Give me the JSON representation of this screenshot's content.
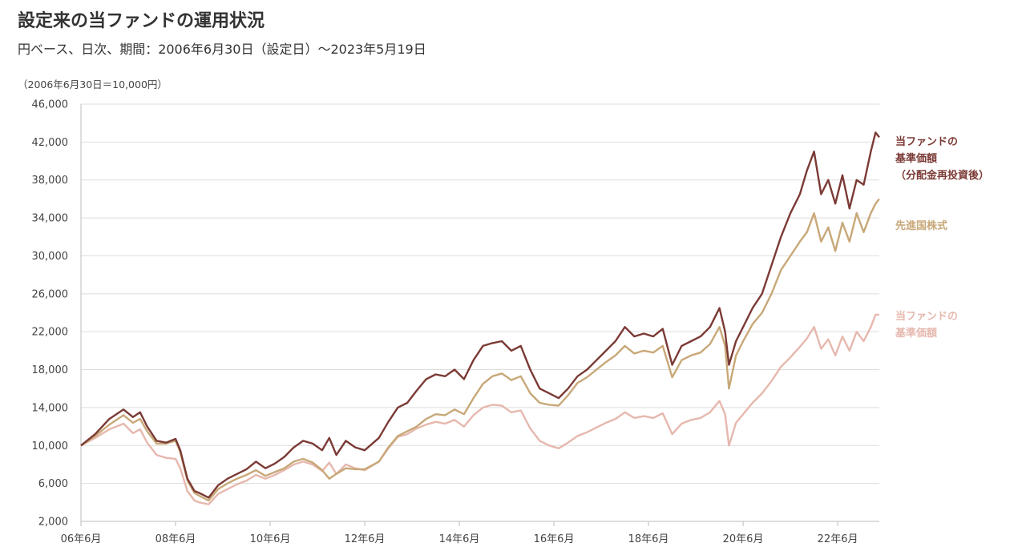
{
  "title": "設定来の当ファンドの運用状況",
  "subtitle": "円ベース、日次、期間：2006年6月30日（設定日）～2023年5月19日",
  "chart_data": {
    "type": "line",
    "unit_note": "（2006年6月30日＝10,000円）",
    "ylim": [
      2000,
      46000
    ],
    "yticks": [
      2000,
      6000,
      10000,
      14000,
      18000,
      22000,
      26000,
      30000,
      34000,
      38000,
      42000,
      46000
    ],
    "ytick_labels": [
      "2,000",
      "6,000",
      "10,000",
      "14,000",
      "18,000",
      "22,000",
      "26,000",
      "30,000",
      "34,000",
      "38,000",
      "42,000",
      "46,000"
    ],
    "xlim": [
      2006.5,
      2023.38
    ],
    "xticks": [
      2006.5,
      2008.5,
      2010.5,
      2012.5,
      2014.5,
      2016.5,
      2018.5,
      2020.5,
      2022.5
    ],
    "xtick_labels": [
      "06年6月",
      "08年6月",
      "10年6月",
      "12年6月",
      "14年6月",
      "16年6月",
      "18年6月",
      "20年6月",
      "22年6月"
    ],
    "grid": true,
    "legend_placement": "right",
    "series": [
      {
        "name": "当ファンドの基準価額（分配金再投資後）",
        "label_lines": [
          "当ファンドの",
          "基準価額",
          "（分配金再投資後）"
        ],
        "color": "#7b3a35",
        "points": [
          [
            2006.5,
            10000
          ],
          [
            2006.8,
            11200
          ],
          [
            2007.1,
            12800
          ],
          [
            2007.4,
            13800
          ],
          [
            2007.6,
            13000
          ],
          [
            2007.75,
            13500
          ],
          [
            2007.9,
            12000
          ],
          [
            2008.1,
            10500
          ],
          [
            2008.3,
            10300
          ],
          [
            2008.5,
            10700
          ],
          [
            2008.6,
            9500
          ],
          [
            2008.75,
            6500
          ],
          [
            2008.9,
            5200
          ],
          [
            2009.0,
            5000
          ],
          [
            2009.2,
            4500
          ],
          [
            2009.4,
            5800
          ],
          [
            2009.6,
            6500
          ],
          [
            2009.8,
            7000
          ],
          [
            2010.0,
            7500
          ],
          [
            2010.2,
            8300
          ],
          [
            2010.4,
            7600
          ],
          [
            2010.6,
            8100
          ],
          [
            2010.8,
            8800
          ],
          [
            2011.0,
            9800
          ],
          [
            2011.2,
            10500
          ],
          [
            2011.4,
            10200
          ],
          [
            2011.6,
            9500
          ],
          [
            2011.75,
            10800
          ],
          [
            2011.9,
            9000
          ],
          [
            2012.1,
            10500
          ],
          [
            2012.3,
            9800
          ],
          [
            2012.5,
            9500
          ],
          [
            2012.8,
            10800
          ],
          [
            2013.0,
            12500
          ],
          [
            2013.2,
            14000
          ],
          [
            2013.4,
            14500
          ],
          [
            2013.6,
            15800
          ],
          [
            2013.8,
            17000
          ],
          [
            2014.0,
            17500
          ],
          [
            2014.2,
            17300
          ],
          [
            2014.4,
            18000
          ],
          [
            2014.6,
            17000
          ],
          [
            2014.8,
            19000
          ],
          [
            2015.0,
            20500
          ],
          [
            2015.2,
            20800
          ],
          [
            2015.4,
            21000
          ],
          [
            2015.6,
            20000
          ],
          [
            2015.8,
            20500
          ],
          [
            2016.0,
            18000
          ],
          [
            2016.2,
            16000
          ],
          [
            2016.4,
            15500
          ],
          [
            2016.6,
            15000
          ],
          [
            2016.8,
            16000
          ],
          [
            2017.0,
            17300
          ],
          [
            2017.2,
            18000
          ],
          [
            2017.4,
            19000
          ],
          [
            2017.6,
            20000
          ],
          [
            2017.8,
            21000
          ],
          [
            2018.0,
            22500
          ],
          [
            2018.2,
            21500
          ],
          [
            2018.4,
            21800
          ],
          [
            2018.6,
            21500
          ],
          [
            2018.8,
            22300
          ],
          [
            2019.0,
            18500
          ],
          [
            2019.2,
            20500
          ],
          [
            2019.4,
            21000
          ],
          [
            2019.6,
            21500
          ],
          [
            2019.8,
            22500
          ],
          [
            2020.0,
            24500
          ],
          [
            2020.12,
            22000
          ],
          [
            2020.2,
            18500
          ],
          [
            2020.35,
            21000
          ],
          [
            2020.5,
            22500
          ],
          [
            2020.7,
            24500
          ],
          [
            2020.9,
            26000
          ],
          [
            2021.1,
            29000
          ],
          [
            2021.3,
            32000
          ],
          [
            2021.5,
            34500
          ],
          [
            2021.7,
            36500
          ],
          [
            2021.85,
            39000
          ],
          [
            2022.0,
            41000
          ],
          [
            2022.15,
            36500
          ],
          [
            2022.3,
            38000
          ],
          [
            2022.45,
            35500
          ],
          [
            2022.6,
            38500
          ],
          [
            2022.75,
            35000
          ],
          [
            2022.9,
            38000
          ],
          [
            2023.05,
            37500
          ],
          [
            2023.2,
            41000
          ],
          [
            2023.3,
            43000
          ],
          [
            2023.38,
            42500
          ]
        ]
      },
      {
        "name": "先進国株式",
        "label_lines": [
          "先進国株式"
        ],
        "color": "#c8a878",
        "points": [
          [
            2006.5,
            10000
          ],
          [
            2006.8,
            11000
          ],
          [
            2007.1,
            12200
          ],
          [
            2007.4,
            13200
          ],
          [
            2007.6,
            12400
          ],
          [
            2007.75,
            12800
          ],
          [
            2007.9,
            11500
          ],
          [
            2008.1,
            10200
          ],
          [
            2008.3,
            10200
          ],
          [
            2008.5,
            10500
          ],
          [
            2008.6,
            9300
          ],
          [
            2008.75,
            6300
          ],
          [
            2008.9,
            5000
          ],
          [
            2009.0,
            4700
          ],
          [
            2009.2,
            4200
          ],
          [
            2009.4,
            5400
          ],
          [
            2009.6,
            6000
          ],
          [
            2009.8,
            6500
          ],
          [
            2010.0,
            6900
          ],
          [
            2010.2,
            7400
          ],
          [
            2010.4,
            6800
          ],
          [
            2010.6,
            7200
          ],
          [
            2010.8,
            7600
          ],
          [
            2011.0,
            8300
          ],
          [
            2011.2,
            8600
          ],
          [
            2011.4,
            8200
          ],
          [
            2011.6,
            7400
          ],
          [
            2011.75,
            6500
          ],
          [
            2011.9,
            7000
          ],
          [
            2012.1,
            7600
          ],
          [
            2012.3,
            7500
          ],
          [
            2012.5,
            7500
          ],
          [
            2012.8,
            8300
          ],
          [
            2013.0,
            9800
          ],
          [
            2013.2,
            11000
          ],
          [
            2013.4,
            11500
          ],
          [
            2013.6,
            12000
          ],
          [
            2013.8,
            12800
          ],
          [
            2014.0,
            13300
          ],
          [
            2014.2,
            13200
          ],
          [
            2014.4,
            13800
          ],
          [
            2014.6,
            13300
          ],
          [
            2014.8,
            15000
          ],
          [
            2015.0,
            16500
          ],
          [
            2015.2,
            17300
          ],
          [
            2015.4,
            17600
          ],
          [
            2015.6,
            16900
          ],
          [
            2015.8,
            17300
          ],
          [
            2016.0,
            15500
          ],
          [
            2016.2,
            14500
          ],
          [
            2016.4,
            14300
          ],
          [
            2016.6,
            14200
          ],
          [
            2016.8,
            15300
          ],
          [
            2017.0,
            16600
          ],
          [
            2017.2,
            17200
          ],
          [
            2017.4,
            18000
          ],
          [
            2017.6,
            18800
          ],
          [
            2017.8,
            19500
          ],
          [
            2018.0,
            20500
          ],
          [
            2018.2,
            19700
          ],
          [
            2018.4,
            20000
          ],
          [
            2018.6,
            19800
          ],
          [
            2018.8,
            20500
          ],
          [
            2019.0,
            17200
          ],
          [
            2019.2,
            19000
          ],
          [
            2019.4,
            19500
          ],
          [
            2019.6,
            19800
          ],
          [
            2019.8,
            20700
          ],
          [
            2020.0,
            22500
          ],
          [
            2020.12,
            20500
          ],
          [
            2020.2,
            16000
          ],
          [
            2020.35,
            19500
          ],
          [
            2020.5,
            21000
          ],
          [
            2020.7,
            22800
          ],
          [
            2020.9,
            24000
          ],
          [
            2021.1,
            26000
          ],
          [
            2021.3,
            28500
          ],
          [
            2021.5,
            30000
          ],
          [
            2021.7,
            31500
          ],
          [
            2021.85,
            32500
          ],
          [
            2022.0,
            34500
          ],
          [
            2022.15,
            31500
          ],
          [
            2022.3,
            33000
          ],
          [
            2022.45,
            30500
          ],
          [
            2022.6,
            33500
          ],
          [
            2022.75,
            31500
          ],
          [
            2022.9,
            34500
          ],
          [
            2023.05,
            32500
          ],
          [
            2023.2,
            34500
          ],
          [
            2023.3,
            35500
          ],
          [
            2023.38,
            36000
          ]
        ]
      },
      {
        "name": "当ファンドの基準価額",
        "label_lines": [
          "当ファンドの",
          "基準価額"
        ],
        "color": "#e6b8ae",
        "points": [
          [
            2006.5,
            10000
          ],
          [
            2006.8,
            10800
          ],
          [
            2007.1,
            11700
          ],
          [
            2007.4,
            12300
          ],
          [
            2007.6,
            11300
          ],
          [
            2007.75,
            11700
          ],
          [
            2007.9,
            10300
          ],
          [
            2008.1,
            9000
          ],
          [
            2008.3,
            8700
          ],
          [
            2008.5,
            8600
          ],
          [
            2008.6,
            7600
          ],
          [
            2008.75,
            5200
          ],
          [
            2008.9,
            4200
          ],
          [
            2009.0,
            4000
          ],
          [
            2009.2,
            3800
          ],
          [
            2009.4,
            4900
          ],
          [
            2009.6,
            5400
          ],
          [
            2009.8,
            5900
          ],
          [
            2010.0,
            6300
          ],
          [
            2010.2,
            6900
          ],
          [
            2010.4,
            6500
          ],
          [
            2010.6,
            6900
          ],
          [
            2010.8,
            7400
          ],
          [
            2011.0,
            8000
          ],
          [
            2011.2,
            8300
          ],
          [
            2011.4,
            8000
          ],
          [
            2011.6,
            7300
          ],
          [
            2011.75,
            8200
          ],
          [
            2011.9,
            7000
          ],
          [
            2012.1,
            8000
          ],
          [
            2012.3,
            7600
          ],
          [
            2012.5,
            7400
          ],
          [
            2012.8,
            8300
          ],
          [
            2013.0,
            9700
          ],
          [
            2013.2,
            10900
          ],
          [
            2013.4,
            11200
          ],
          [
            2013.6,
            11800
          ],
          [
            2013.8,
            12200
          ],
          [
            2014.0,
            12500
          ],
          [
            2014.2,
            12300
          ],
          [
            2014.4,
            12700
          ],
          [
            2014.6,
            12000
          ],
          [
            2014.8,
            13200
          ],
          [
            2015.0,
            14000
          ],
          [
            2015.2,
            14300
          ],
          [
            2015.4,
            14200
          ],
          [
            2015.6,
            13500
          ],
          [
            2015.8,
            13700
          ],
          [
            2016.0,
            11800
          ],
          [
            2016.2,
            10500
          ],
          [
            2016.4,
            10000
          ],
          [
            2016.6,
            9700
          ],
          [
            2016.8,
            10300
          ],
          [
            2017.0,
            11000
          ],
          [
            2017.2,
            11400
          ],
          [
            2017.4,
            11900
          ],
          [
            2017.6,
            12400
          ],
          [
            2017.8,
            12800
          ],
          [
            2018.0,
            13500
          ],
          [
            2018.2,
            12900
          ],
          [
            2018.4,
            13100
          ],
          [
            2018.6,
            12900
          ],
          [
            2018.8,
            13400
          ],
          [
            2019.0,
            11200
          ],
          [
            2019.2,
            12300
          ],
          [
            2019.4,
            12700
          ],
          [
            2019.6,
            12900
          ],
          [
            2019.8,
            13500
          ],
          [
            2020.0,
            14700
          ],
          [
            2020.12,
            13300
          ],
          [
            2020.2,
            10000
          ],
          [
            2020.35,
            12400
          ],
          [
            2020.5,
            13300
          ],
          [
            2020.7,
            14500
          ],
          [
            2020.9,
            15500
          ],
          [
            2021.1,
            16800
          ],
          [
            2021.3,
            18300
          ],
          [
            2021.5,
            19300
          ],
          [
            2021.7,
            20400
          ],
          [
            2021.85,
            21300
          ],
          [
            2022.0,
            22500
          ],
          [
            2022.15,
            20200
          ],
          [
            2022.3,
            21200
          ],
          [
            2022.45,
            19500
          ],
          [
            2022.6,
            21500
          ],
          [
            2022.75,
            20000
          ],
          [
            2022.9,
            22000
          ],
          [
            2023.05,
            21000
          ],
          [
            2023.2,
            22500
          ],
          [
            2023.3,
            23800
          ],
          [
            2023.38,
            23800
          ]
        ]
      }
    ]
  }
}
